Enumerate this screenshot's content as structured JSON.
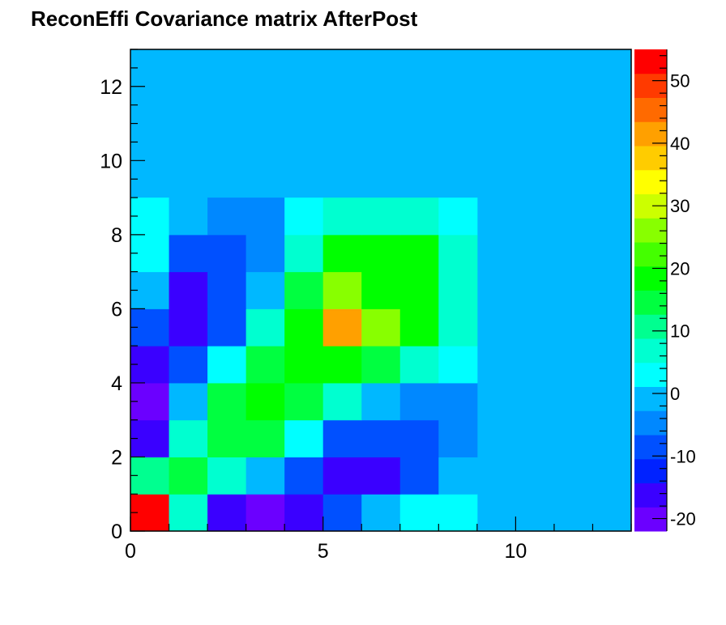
{
  "chart_data": {
    "type": "heatmap",
    "title": "ReconEffi Covariance matrix AfterPost",
    "xlabel": "",
    "ylabel": "",
    "xlim": [
      0,
      13
    ],
    "ylim": [
      0,
      13
    ],
    "x_ticks": [
      "0",
      "5",
      "10"
    ],
    "y_ticks": [
      "0",
      "2",
      "4",
      "6",
      "8",
      "10",
      "12"
    ],
    "colorbar": {
      "range": [
        -22,
        55
      ],
      "ticks": [
        "-20",
        "-10",
        "0",
        "10",
        "20",
        "30",
        "40",
        "50"
      ]
    },
    "grid": false,
    "legend": "none",
    "background_value": 0,
    "rows": [
      {
        "y": 0,
        "values": [
          55,
          8,
          -15,
          -21,
          -18,
          -10,
          0,
          3,
          3
        ]
      },
      {
        "y": 1,
        "values": [
          12,
          13,
          5,
          0,
          -10,
          -18,
          -15,
          -10,
          0
        ]
      },
      {
        "y": 2,
        "values": [
          -15,
          5,
          13,
          13,
          3,
          -10,
          -10,
          -10,
          -6
        ]
      },
      {
        "y": 3,
        "values": [
          -21,
          0,
          13,
          17,
          13,
          5,
          0,
          -5,
          -5
        ]
      },
      {
        "y": 4,
        "values": [
          -18,
          -10,
          3,
          13,
          17,
          20,
          13,
          5,
          3
        ]
      },
      {
        "y": 5,
        "values": [
          -10,
          -18,
          -10,
          5,
          20,
          40,
          28,
          20,
          5
        ]
      },
      {
        "y": 6,
        "values": [
          0,
          -15,
          -10,
          0,
          13,
          28,
          20,
          17,
          5
        ]
      },
      {
        "y": 7,
        "values": [
          3,
          -10,
          -10,
          -5,
          5,
          20,
          17,
          17,
          5
        ]
      },
      {
        "y": 8,
        "values": [
          3,
          0,
          -6,
          -5,
          3,
          5,
          5,
          5,
          3
        ]
      }
    ]
  }
}
